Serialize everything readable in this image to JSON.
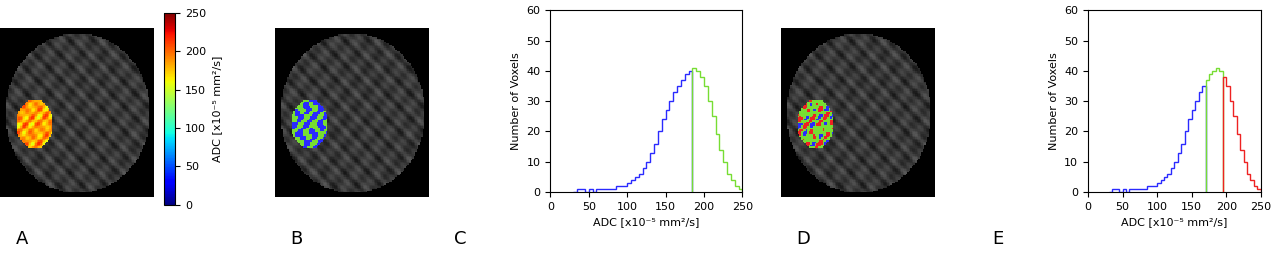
{
  "chart_data": [
    {
      "type": "image",
      "title": "A",
      "colorbar": {
        "range": [
          0,
          250
        ],
        "ticks": [
          0,
          50,
          100,
          150,
          200,
          250
        ],
        "label": "ADC [x10⁻⁵ mm²/s]"
      }
    },
    {
      "type": "image",
      "title": "B"
    },
    {
      "type": "histogram",
      "title": "C",
      "x_label": "ADC [x10⁻⁵ mm²/s]",
      "y_label": "Number of Voxels",
      "xlim": [
        0,
        250
      ],
      "ylim": [
        0,
        60
      ],
      "xticks": [
        0,
        50,
        100,
        150,
        200,
        250
      ],
      "yticks": [
        0,
        10,
        20,
        30,
        40,
        50,
        60
      ],
      "series": [
        {
          "color": "#2a2aff",
          "bins": [
            30,
            35,
            40,
            45,
            50,
            55,
            60,
            65,
            70,
            75,
            80,
            85,
            90,
            95,
            100,
            105,
            110,
            115,
            120,
            125,
            130,
            135,
            140,
            145,
            150,
            155,
            160,
            165,
            170,
            175,
            180,
            185
          ],
          "values": [
            0,
            1,
            1,
            0,
            1,
            0,
            1,
            1,
            1,
            1,
            1,
            2,
            2,
            2,
            3,
            4,
            5,
            6,
            8,
            10,
            13,
            16,
            20,
            24,
            27,
            30,
            33,
            35,
            37,
            39,
            40
          ]
        },
        {
          "color": "#77dd33",
          "bins": [
            185,
            190,
            195,
            200,
            205,
            210,
            215,
            220,
            225,
            230,
            235,
            240,
            245,
            250
          ],
          "values": [
            41,
            40,
            38,
            35,
            30,
            25,
            19,
            14,
            10,
            6,
            4,
            2,
            1
          ]
        }
      ]
    },
    {
      "type": "image",
      "title": "D"
    },
    {
      "type": "histogram",
      "title": "E",
      "x_label": "ADC [x10⁻⁵ mm²/s]",
      "y_label": "Number of Voxels",
      "xlim": [
        0,
        250
      ],
      "ylim": [
        0,
        60
      ],
      "xticks": [
        0,
        50,
        100,
        150,
        200,
        250
      ],
      "yticks": [
        0,
        10,
        20,
        30,
        40,
        50,
        60
      ],
      "series": [
        {
          "color": "#2a2aff",
          "bins": [
            30,
            35,
            40,
            45,
            50,
            55,
            60,
            65,
            70,
            75,
            80,
            85,
            90,
            95,
            100,
            105,
            110,
            115,
            120,
            125,
            130,
            135,
            140,
            145,
            150,
            155,
            160,
            165,
            170
          ],
          "values": [
            0,
            1,
            1,
            0,
            1,
            0,
            1,
            1,
            1,
            1,
            1,
            2,
            2,
            2,
            3,
            4,
            5,
            6,
            8,
            10,
            13,
            16,
            20,
            24,
            27,
            30,
            33,
            35
          ]
        },
        {
          "color": "#77dd33",
          "bins": [
            170,
            175,
            180,
            185,
            190,
            195
          ],
          "values": [
            37,
            39,
            40,
            41,
            40
          ]
        },
        {
          "color": "#ee2222",
          "bins": [
            195,
            200,
            205,
            210,
            215,
            220,
            225,
            230,
            235,
            240,
            245,
            250
          ],
          "values": [
            38,
            35,
            30,
            25,
            19,
            14,
            10,
            6,
            4,
            2,
            1
          ]
        }
      ]
    }
  ]
}
